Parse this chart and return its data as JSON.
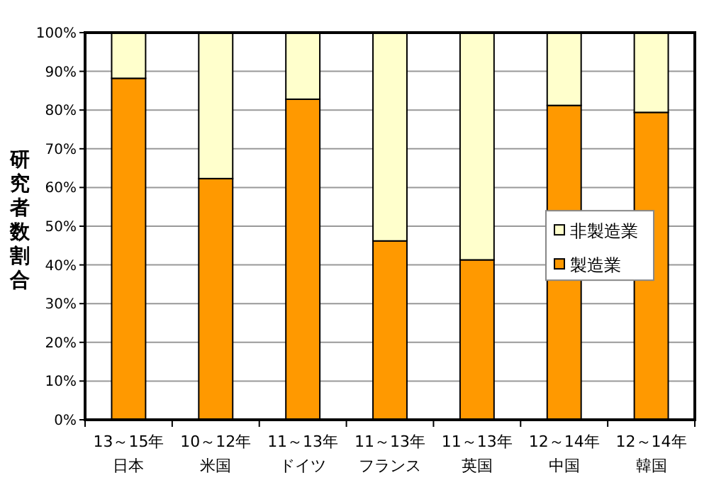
{
  "chart_data": {
    "type": "bar",
    "stacked": true,
    "ylabel": "研究者数割合",
    "categories": [
      "13～15年日本",
      "10～12年米国",
      "11～13年ドイツ",
      "11～13年フランス",
      "11～13年英国",
      "12～14年中国",
      "12～14年韓国"
    ],
    "series": [
      {
        "name": "製造業",
        "color": "#ff9900",
        "values": [
          88.2,
          62.3,
          82.8,
          46.2,
          41.3,
          81.2,
          79.4
        ]
      },
      {
        "name": "非製造業",
        "color": "#ffffcc",
        "values": [
          11.8,
          37.7,
          17.2,
          53.8,
          58.7,
          18.8,
          20.6
        ]
      }
    ],
    "ylim": [
      0,
      100
    ],
    "yticks": [
      {
        "value": 0,
        "label": "0%"
      },
      {
        "value": 10,
        "label": "10%"
      },
      {
        "value": 20,
        "label": "20%"
      },
      {
        "value": 30,
        "label": "30%"
      },
      {
        "value": 40,
        "label": "40%"
      },
      {
        "value": 50,
        "label": "50%"
      },
      {
        "value": 60,
        "label": "60%"
      },
      {
        "value": 70,
        "label": "70%"
      },
      {
        "value": 80,
        "label": "80%"
      },
      {
        "value": 90,
        "label": "90%"
      },
      {
        "value": 100,
        "label": "100%"
      }
    ],
    "grid": "y",
    "legend": "right"
  }
}
